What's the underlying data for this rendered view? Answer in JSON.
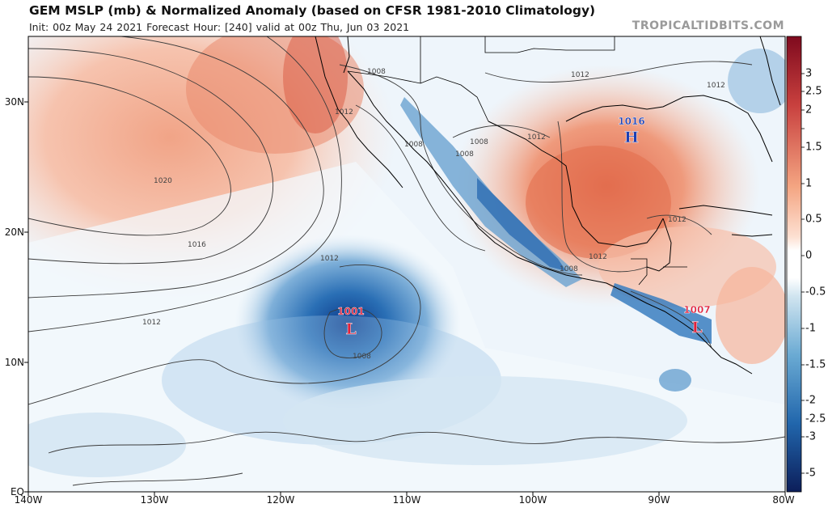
{
  "title": "GEM MSLP (mb) & Normalized Anomaly (based on CFSR 1981-2010 Climatology)",
  "subtitle": "Init: 00z May 24 2021   Forecast Hour: [240]   valid at 00z Thu, Jun 03 2021",
  "credit": "TROPICALTIDBITS.COM",
  "chart_data": {
    "type": "heatmap",
    "title": "GEM MSLP (mb) & Normalized Anomaly (based on CFSR 1981-2010 Climatology)",
    "x_axis": {
      "ticks": [
        "140W",
        "130W",
        "120W",
        "110W",
        "100W",
        "90W",
        "80W"
      ],
      "range": [
        -140,
        -80
      ]
    },
    "y_axis": {
      "ticks": [
        "30N",
        "20N",
        "10N",
        "EQ"
      ],
      "range": [
        0,
        35
      ]
    },
    "colorbar": {
      "ticks": [
        "3",
        "2.5",
        "2",
        "1.5",
        "1",
        "0.5",
        "0",
        "-0.5",
        "-1",
        "-1.5",
        "-2",
        "-2.5",
        "-3",
        "-5"
      ],
      "range": [
        -5,
        3.5
      ],
      "positive_color": "#b2182b",
      "negative_color": "#2166ac"
    },
    "pressure_centers": [
      {
        "type": "L",
        "value": "1001",
        "lon": -115,
        "lat": 12.7
      },
      {
        "type": "L",
        "value": "1007",
        "lon": -87,
        "lat": 13
      },
      {
        "type": "H",
        "value": "1016",
        "lon": -91.5,
        "lat": 26
      }
    ],
    "isobar_labels": [
      "1020",
      "1016",
      "1012",
      "1012",
      "1012",
      "1008",
      "1008",
      "1008",
      "1008",
      "1012",
      "1012",
      "1012",
      "1012",
      "1008",
      "1008",
      "1012"
    ]
  }
}
